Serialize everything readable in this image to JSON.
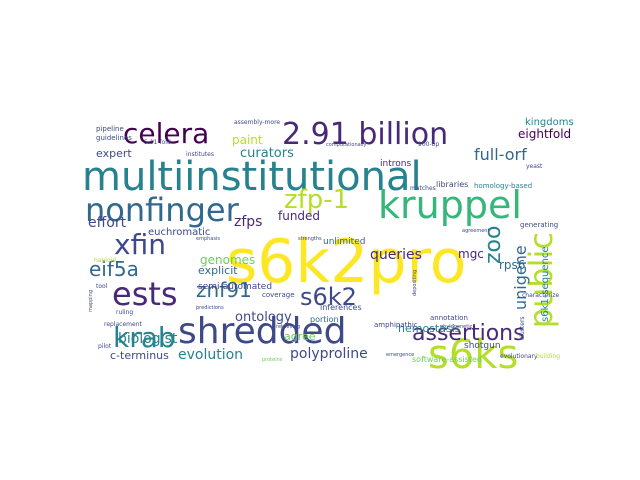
{
  "colors": {
    "background": "#ffffff",
    "palette": [
      "#440154",
      "#482878",
      "#3e4989",
      "#31688e",
      "#26828e",
      "#1f9e89",
      "#35b779",
      "#6ece58",
      "#b5de2b",
      "#fde725"
    ]
  },
  "words": [
    {
      "text": "multiinstitutional",
      "color": "#26828e"
    },
    {
      "text": "s6k2pro",
      "color": "#fde725"
    },
    {
      "text": "shredded",
      "color": "#3e4989"
    },
    {
      "text": "2.91 billion",
      "color": "#482878"
    },
    {
      "text": "nonfinger",
      "color": "#31688e"
    },
    {
      "text": "kruppel",
      "color": "#35b779"
    },
    {
      "text": "s6ks",
      "color": "#b5de2b"
    },
    {
      "text": "celera",
      "color": "#440154"
    },
    {
      "text": "public",
      "color": "#b5de2b"
    },
    {
      "text": "xfin",
      "color": "#3e4989"
    },
    {
      "text": "ests",
      "color": "#482878"
    },
    {
      "text": "zfp-1",
      "color": "#b5de2b"
    },
    {
      "text": "krab",
      "color": "#26828e"
    },
    {
      "text": "assertions",
      "color": "#482878"
    },
    {
      "text": "s6k2",
      "color": "#3e4989"
    },
    {
      "text": "znf91",
      "color": "#31688e"
    },
    {
      "text": "eif5a",
      "color": "#31688e"
    },
    {
      "text": "zoo",
      "color": "#26828e"
    },
    {
      "text": "unigene",
      "color": "#31688e"
    },
    {
      "text": "full-orf",
      "color": "#31688e"
    },
    {
      "text": "queries",
      "color": "#482878"
    },
    {
      "text": "biologist",
      "color": "#26828e"
    },
    {
      "text": "evolution",
      "color": "#26828e"
    },
    {
      "text": "polyproline",
      "color": "#3e4989"
    },
    {
      "text": "curators",
      "color": "#26828e"
    },
    {
      "text": "ontology",
      "color": "#3e4989"
    },
    {
      "text": "effort",
      "color": "#3e4989"
    },
    {
      "text": "zfps",
      "color": "#482878"
    },
    {
      "text": "funded",
      "color": "#482878"
    },
    {
      "text": "paint",
      "color": "#b5de2b"
    },
    {
      "text": "genomes",
      "color": "#6ece58"
    },
    {
      "text": "eightfold",
      "color": "#440154"
    },
    {
      "text": "expert",
      "color": "#3e4989"
    },
    {
      "text": "c-terminus",
      "color": "#3e4989"
    },
    {
      "text": "explicit",
      "color": "#31688e"
    },
    {
      "text": "rps6",
      "color": "#31688e"
    },
    {
      "text": "mgc",
      "color": "#482878"
    },
    {
      "text": "hemostasis",
      "color": "#26828e"
    },
    {
      "text": "euchromatic",
      "color": "#3e4989"
    },
    {
      "text": "kingdoms",
      "color": "#26828e"
    },
    {
      "text": "agree",
      "color": "#6ece58"
    },
    {
      "text": "s6k1-sequence",
      "color": "#26828e"
    },
    {
      "text": "unlimited",
      "color": "#31688e"
    },
    {
      "text": "semi-automated",
      "color": "#3e4989"
    },
    {
      "text": "inferences",
      "color": "#3e4989"
    },
    {
      "text": "introns",
      "color": "#482878"
    },
    {
      "text": "shotgun",
      "color": "#3e4989"
    },
    {
      "text": "software-assisted",
      "color": "#6ece58"
    },
    {
      "text": "portion",
      "color": "#31688e"
    },
    {
      "text": "coverage",
      "color": "#3e4989"
    },
    {
      "text": "libraries",
      "color": "#3e4989"
    },
    {
      "text": "homology-based",
      "color": "#26828e"
    },
    {
      "text": "amphipathic",
      "color": "#3e4989"
    },
    {
      "text": "annotation",
      "color": "#3e4989"
    },
    {
      "text": "generating",
      "color": "#3e4989"
    },
    {
      "text": "pipeline",
      "color": "#3e4989"
    },
    {
      "text": "guidelines",
      "color": "#3e4989"
    },
    {
      "text": "5.11-fold",
      "color": "#3e4989"
    },
    {
      "text": "institutes",
      "color": "#3e4989"
    },
    {
      "text": "assembly-more",
      "color": "#3e4989"
    },
    {
      "text": "replacement",
      "color": "#3e4989"
    },
    {
      "text": "evolutionary",
      "color": "#3e4989"
    },
    {
      "text": "building",
      "color": "#b5de2b"
    },
    {
      "text": "characterize",
      "color": "#3e4989"
    },
    {
      "text": "clusters",
      "color": "#3e4989"
    },
    {
      "text": "ruling",
      "color": "#3e4989"
    },
    {
      "text": "pilot",
      "color": "#3e4989"
    },
    {
      "text": "tool",
      "color": "#3e4989"
    },
    {
      "text": "mapping",
      "color": "#3e4989"
    },
    {
      "text": "haploid",
      "color": "#b5de2b"
    },
    {
      "text": "yeast",
      "color": "#3e4989"
    },
    {
      "text": "100-bp",
      "color": "#3e4989"
    },
    {
      "text": "matches",
      "color": "#3e4989"
    },
    {
      "text": "computationally",
      "color": "#3e4989"
    },
    {
      "text": "predictions",
      "color": "#3e4989"
    },
    {
      "text": "emphasis",
      "color": "#3e4989"
    },
    {
      "text": "retrieving",
      "color": "#3e4989"
    },
    {
      "text": "depositing",
      "color": "#3e4989"
    },
    {
      "text": "agreement",
      "color": "#3e4989"
    },
    {
      "text": "proteins",
      "color": "#6ece58"
    },
    {
      "text": "emergence",
      "color": "#3e4989"
    },
    {
      "text": "phylogenetic",
      "color": "#3e4989"
    },
    {
      "text": "strengths",
      "color": "#3e4989"
    }
  ]
}
